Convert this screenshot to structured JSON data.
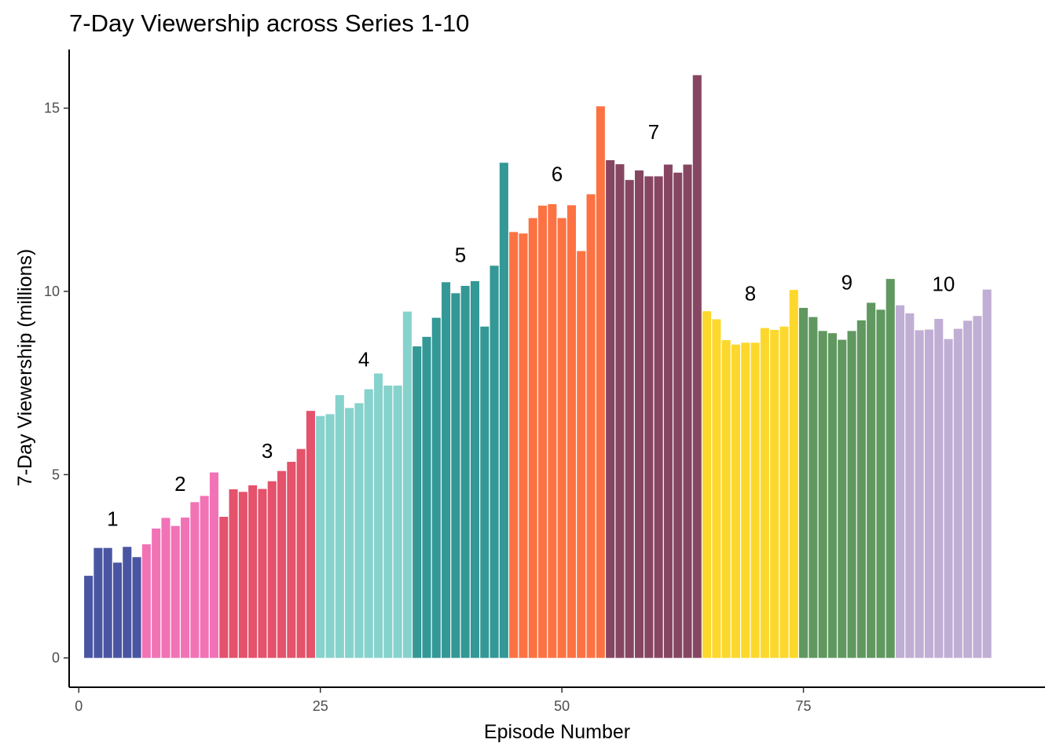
{
  "chart_data": {
    "type": "bar",
    "title": "7-Day Viewership across Series 1-10",
    "xlabel": "Episode Number",
    "ylabel": "7-Day Viewership (millions)",
    "xlim": [
      -1,
      100
    ],
    "ylim": [
      -0.8,
      16.6
    ],
    "x_ticks": [
      0,
      25,
      50,
      75
    ],
    "y_ticks": [
      0,
      5,
      10,
      15
    ],
    "grid": false,
    "legend": "none",
    "series": [
      {
        "label": "1",
        "color": "#4a55a2",
        "episodes": [
          1,
          2,
          3,
          4,
          5,
          6
        ],
        "values": [
          2.24,
          3.0,
          3.0,
          2.6,
          3.03,
          2.75
        ]
      },
      {
        "label": "2",
        "color": "#f272b6",
        "episodes": [
          7,
          8,
          9,
          10,
          11,
          12,
          13,
          14
        ],
        "values": [
          3.1,
          3.53,
          3.82,
          3.6,
          3.83,
          4.25,
          4.42,
          5.06
        ]
      },
      {
        "label": "3",
        "color": "#e4526b",
        "episodes": [
          15,
          16,
          17,
          18,
          19,
          20,
          21,
          22,
          23,
          24
        ],
        "values": [
          3.85,
          4.6,
          4.53,
          4.71,
          4.61,
          4.82,
          5.1,
          5.35,
          5.7,
          6.74
        ]
      },
      {
        "label": "4",
        "color": "#86d2cc",
        "episodes": [
          25,
          26,
          27,
          28,
          29,
          30,
          31,
          32,
          33,
          34
        ],
        "values": [
          6.6,
          6.65,
          7.17,
          6.82,
          6.95,
          7.33,
          7.76,
          7.43,
          7.43,
          9.45
        ]
      },
      {
        "label": "5",
        "color": "#339896",
        "episodes": [
          35,
          36,
          37,
          38,
          39,
          40,
          41,
          42,
          43,
          44
        ],
        "values": [
          8.5,
          8.76,
          9.28,
          10.25,
          9.95,
          10.15,
          10.28,
          9.04,
          10.7,
          13.51
        ]
      },
      {
        "label": "6",
        "color": "#fd7243",
        "episodes": [
          45,
          46,
          47,
          48,
          49,
          50,
          51,
          52,
          53,
          54
        ],
        "values": [
          11.62,
          11.58,
          12.0,
          12.34,
          12.38,
          12.0,
          12.35,
          11.1,
          12.65,
          15.05
        ]
      },
      {
        "label": "7",
        "color": "#864661",
        "episodes": [
          55,
          56,
          57,
          58,
          59,
          60,
          61,
          62,
          63,
          64
        ],
        "values": [
          13.58,
          13.47,
          13.04,
          13.3,
          13.14,
          13.14,
          13.46,
          13.24,
          13.46,
          15.9
        ]
      },
      {
        "label": "8",
        "color": "#fdd82c",
        "episodes": [
          65,
          66,
          67,
          68,
          69,
          70,
          71,
          72,
          73,
          74
        ],
        "values": [
          9.46,
          9.24,
          8.67,
          8.55,
          8.6,
          8.6,
          9.0,
          8.95,
          9.04,
          10.04
        ]
      },
      {
        "label": "9",
        "color": "#609860",
        "episodes": [
          75,
          76,
          77,
          78,
          79,
          80,
          81,
          82,
          83,
          84
        ],
        "values": [
          9.55,
          9.3,
          8.92,
          8.86,
          8.68,
          8.92,
          9.21,
          9.69,
          9.5,
          10.34
        ]
      },
      {
        "label": "10",
        "color": "#c1aed4",
        "episodes": [
          85,
          86,
          87,
          88,
          89,
          90,
          91,
          92,
          93,
          94
        ],
        "values": [
          9.62,
          9.4,
          8.94,
          8.96,
          9.25,
          8.7,
          8.98,
          9.2,
          9.33,
          10.05
        ]
      }
    ],
    "annotations": [
      {
        "text": "1",
        "x": 3.5,
        "y": 3.8
      },
      {
        "text": "2",
        "x": 10.5,
        "y": 4.75
      },
      {
        "text": "3",
        "x": 19.5,
        "y": 5.65
      },
      {
        "text": "4",
        "x": 29.5,
        "y": 8.15
      },
      {
        "text": "5",
        "x": 39.5,
        "y": 11.0
      },
      {
        "text": "6",
        "x": 49.5,
        "y": 13.2
      },
      {
        "text": "7",
        "x": 59.5,
        "y": 14.35
      },
      {
        "text": "8",
        "x": 69.5,
        "y": 9.95
      },
      {
        "text": "9",
        "x": 79.5,
        "y": 10.25
      },
      {
        "text": "10",
        "x": 89.5,
        "y": 10.2
      }
    ]
  }
}
